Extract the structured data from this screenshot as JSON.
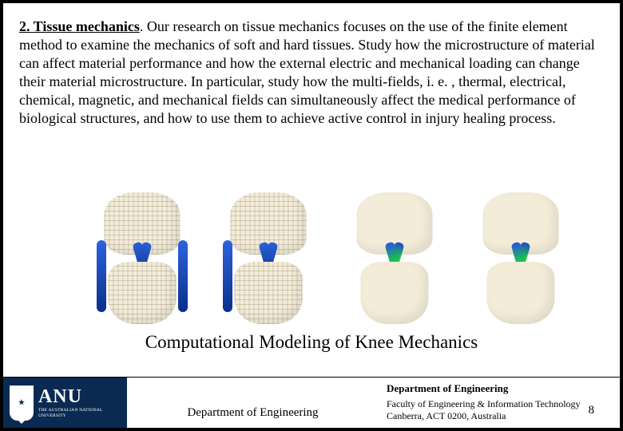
{
  "body": {
    "heading": "2. Tissue mechanics",
    "text": ". Our research on tissue mechanics focuses on the use of the finite element method to examine the mechanics of soft and hard tissues. Study how the microstructure of material can affect material performance and how the external electric and mechanical loading can change their material microstructure. In particular, study how the multi-fields, i. e. , thermal, electrical, chemical, magnetic, and mechanical fields can simultaneously affect the medical performance of biological structures, and how to use them to achieve active control in injury healing process."
  },
  "caption": "Computational Modeling of Knee Mechanics",
  "footer": {
    "logo_text": "ANU",
    "logo_subtext": "THE AUSTRALIAN NATIONAL UNIVERSITY",
    "center": "Department of Engineering",
    "dept_bold": "Department of Engineering",
    "faculty_line": "Faculty of Engineering & Information Technology",
    "address_line": "Canberra, ACT 0200, Australia",
    "page_number": "8"
  },
  "figure": {
    "models": [
      {
        "type": "mesh",
        "ligaments": "blue"
      },
      {
        "type": "mesh",
        "ligaments": "blue"
      },
      {
        "type": "smooth",
        "ligaments": "fea"
      },
      {
        "type": "smooth",
        "ligaments": "fea"
      }
    ],
    "colors": {
      "bone": "#f3ecd9",
      "mesh_line": "#7a6e50",
      "ligament_blue_top": "#2a5fd8",
      "ligament_blue_bottom": "#0a2c84",
      "fea_gradient": [
        "#2242d6",
        "#16d03e",
        "#f7e41e",
        "#f77c18",
        "#e21818"
      ],
      "footer_bg": "#0a2a52"
    }
  }
}
